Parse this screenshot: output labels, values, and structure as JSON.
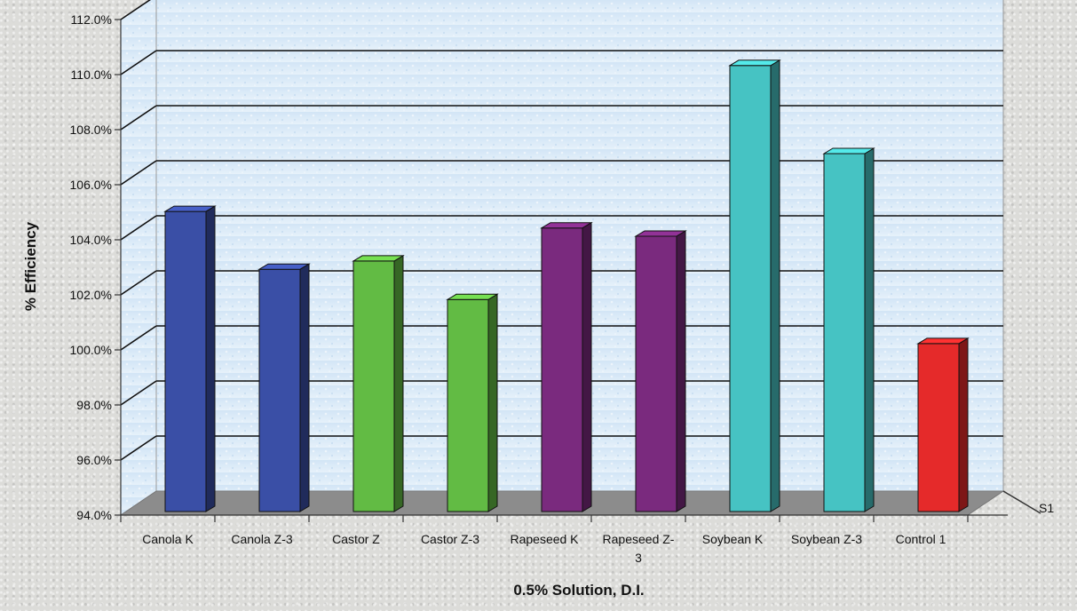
{
  "chart_data": {
    "type": "bar",
    "style": "3d-column",
    "xlabel": "0.5% Solution, D.I.",
    "ylabel": "% Efficiency",
    "ylim": [
      0.94,
      1.12
    ],
    "ytick_values": [
      0.94,
      0.96,
      0.98,
      1.0,
      1.02,
      1.04,
      1.06,
      1.08,
      1.1,
      1.12
    ],
    "ytick_labels": [
      "94.0%",
      "96.0%",
      "98.0%",
      "100.0%",
      "102.0%",
      "104.0%",
      "106.0%",
      "108.0%",
      "110.0%",
      "112.0%"
    ],
    "categories": [
      [
        "Canola K"
      ],
      [
        "Canola Z-3"
      ],
      [
        "Castor Z"
      ],
      [
        "Castor Z-3"
      ],
      [
        "Rapeseed K"
      ],
      [
        "Rapeseed Z-",
        "3"
      ],
      [
        "Soybean K"
      ],
      [
        "Soybean Z-3"
      ],
      [
        "Control 1"
      ]
    ],
    "series": [
      {
        "name": "S1",
        "values": [
          1.049,
          1.028,
          1.031,
          1.017,
          1.043,
          1.04,
          1.102,
          1.07,
          1.001
        ],
        "colors": [
          "#3a4fa6",
          "#3a4fa6",
          "#62bb44",
          "#62bb44",
          "#7a2a7e",
          "#7a2a7e",
          "#46c3c3",
          "#46c3c3",
          "#e52a2a"
        ]
      }
    ],
    "grid": true,
    "depth_label": "S1"
  }
}
